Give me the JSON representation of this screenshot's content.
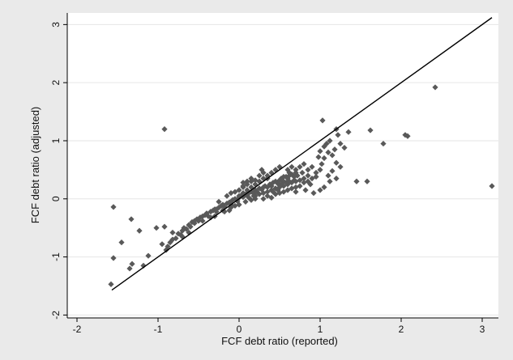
{
  "chart_data": {
    "type": "scatter",
    "title": "",
    "xlabel": "FCF debt ratio (reported)",
    "ylabel": "FCF debt ratio (adjusted)",
    "xlim": [
      -2.12,
      3.2
    ],
    "ylim": [
      -2.05,
      3.2
    ],
    "xticks": [
      -2,
      -1,
      0,
      1,
      2,
      3
    ],
    "yticks": [
      -2,
      -1,
      0,
      1,
      2,
      3
    ],
    "xtick_labels": [
      "-2",
      "-1",
      "0",
      "1",
      "2",
      "3"
    ],
    "ytick_labels": [
      "-2",
      "-1",
      "0",
      "1",
      "2",
      "3"
    ],
    "grid": "horizontal",
    "legend": "none",
    "colors": {
      "plot_background": "#ffffff",
      "outer_background": "#eaeaea",
      "points": "#595959",
      "line": "#000000",
      "grid": "#e6e6e6"
    },
    "reference_line": {
      "x": [
        -1.57,
        3.12
      ],
      "y": [
        -1.57,
        3.12
      ]
    },
    "points": [
      [
        -1.58,
        -1.47
      ],
      [
        -1.55,
        -1.02
      ],
      [
        -1.55,
        -0.14
      ],
      [
        -1.45,
        -0.75
      ],
      [
        -1.35,
        -1.2
      ],
      [
        -1.32,
        -1.12
      ],
      [
        -1.33,
        -0.35
      ],
      [
        -1.23,
        -0.55
      ],
      [
        -1.18,
        -1.15
      ],
      [
        -1.12,
        -0.98
      ],
      [
        -1.02,
        -0.5
      ],
      [
        -0.92,
        1.2
      ],
      [
        -0.95,
        -0.78
      ],
      [
        -0.92,
        -0.48
      ],
      [
        -0.88,
        -0.82
      ],
      [
        -0.85,
        -0.75
      ],
      [
        -0.82,
        -0.7
      ],
      [
        -0.78,
        -0.68
      ],
      [
        -0.75,
        -0.6
      ],
      [
        -0.72,
        -0.62
      ],
      [
        -0.7,
        -0.55
      ],
      [
        -0.68,
        -0.5
      ],
      [
        -0.65,
        -0.52
      ],
      [
        -0.62,
        -0.45
      ],
      [
        -0.6,
        -0.48
      ],
      [
        -0.58,
        -0.4
      ],
      [
        -0.55,
        -0.42
      ],
      [
        -0.52,
        -0.35
      ],
      [
        -0.5,
        -0.38
      ],
      [
        -0.48,
        -0.32
      ],
      [
        -0.45,
        -0.3
      ],
      [
        -0.42,
        -0.28
      ],
      [
        -0.4,
        -0.25
      ],
      [
        -0.38,
        -0.3
      ],
      [
        -0.35,
        -0.22
      ],
      [
        -0.32,
        -0.2
      ],
      [
        -0.3,
        -0.18
      ],
      [
        -0.28,
        -0.22
      ],
      [
        -0.25,
        -0.15
      ],
      [
        -0.22,
        -0.12
      ],
      [
        -0.2,
        -0.1
      ],
      [
        -0.18,
        -0.14
      ],
      [
        -0.15,
        -0.08
      ],
      [
        -0.12,
        -0.06
      ],
      [
        -0.1,
        -0.1
      ],
      [
        -0.08,
        -0.02
      ],
      [
        -0.05,
        0.0
      ],
      [
        -0.02,
        -0.04
      ],
      [
        0.0,
        0.02
      ],
      [
        0.02,
        0.05
      ],
      [
        0.05,
        0.03
      ],
      [
        0.08,
        0.08
      ],
      [
        0.1,
        0.06
      ],
      [
        0.12,
        0.1
      ],
      [
        0.15,
        0.12
      ],
      [
        0.18,
        0.1
      ],
      [
        0.2,
        0.15
      ],
      [
        0.22,
        0.12
      ],
      [
        0.25,
        0.18
      ],
      [
        0.28,
        0.16
      ],
      [
        0.3,
        0.2
      ],
      [
        0.32,
        0.22
      ],
      [
        0.35,
        0.2
      ],
      [
        0.38,
        0.25
      ],
      [
        0.4,
        0.22
      ],
      [
        0.42,
        0.28
      ],
      [
        0.45,
        0.3
      ],
      [
        0.48,
        0.26
      ],
      [
        0.5,
        0.32
      ],
      [
        0.52,
        0.35
      ],
      [
        0.55,
        0.3
      ],
      [
        0.58,
        0.38
      ],
      [
        0.6,
        0.35
      ],
      [
        0.62,
        0.4
      ],
      [
        0.65,
        0.42
      ],
      [
        0.68,
        0.38
      ],
      [
        0.7,
        0.45
      ],
      [
        -0.3,
        -0.3
      ],
      [
        -0.2,
        -0.2
      ],
      [
        -0.1,
        -0.05
      ],
      [
        0.0,
        0.05
      ],
      [
        0.05,
        0.1
      ],
      [
        0.1,
        0.15
      ],
      [
        0.15,
        0.2
      ],
      [
        0.2,
        0.25
      ],
      [
        0.25,
        0.3
      ],
      [
        0.3,
        0.35
      ],
      [
        0.35,
        0.4
      ],
      [
        0.4,
        0.45
      ],
      [
        0.45,
        0.5
      ],
      [
        0.5,
        0.55
      ],
      [
        0.2,
        0.05
      ],
      [
        0.25,
        0.08
      ],
      [
        0.3,
        0.1
      ],
      [
        0.35,
        0.12
      ],
      [
        0.4,
        0.15
      ],
      [
        0.45,
        0.18
      ],
      [
        0.5,
        0.2
      ],
      [
        0.55,
        0.22
      ],
      [
        0.6,
        0.25
      ],
      [
        0.65,
        0.28
      ],
      [
        0.7,
        0.3
      ],
      [
        0.75,
        0.32
      ],
      [
        0.8,
        0.35
      ],
      [
        0.85,
        0.4
      ],
      [
        0.3,
        0.0
      ],
      [
        0.35,
        0.05
      ],
      [
        0.4,
        0.02
      ],
      [
        0.45,
        0.08
      ],
      [
        0.5,
        0.1
      ],
      [
        0.55,
        0.12
      ],
      [
        0.6,
        0.15
      ],
      [
        0.65,
        0.18
      ],
      [
        0.7,
        0.2
      ],
      [
        0.75,
        0.22
      ],
      [
        0.8,
        0.28
      ],
      [
        0.85,
        0.3
      ],
      [
        0.9,
        0.35
      ],
      [
        0.95,
        0.38
      ],
      [
        -0.25,
        -0.05
      ],
      [
        -0.15,
        0.05
      ],
      [
        -0.1,
        0.1
      ],
      [
        -0.05,
        0.12
      ],
      [
        0.0,
        0.15
      ],
      [
        0.05,
        0.2
      ],
      [
        0.1,
        0.25
      ],
      [
        0.15,
        0.3
      ],
      [
        0.2,
        0.32
      ],
      [
        0.25,
        0.4
      ],
      [
        0.3,
        0.45
      ],
      [
        0.1,
        0.3
      ],
      [
        0.05,
        0.28
      ],
      [
        0.2,
        0.0
      ],
      [
        0.0,
        -0.1
      ],
      [
        -0.1,
        -0.15
      ],
      [
        -0.05,
        -0.12
      ],
      [
        0.08,
        -0.05
      ],
      [
        0.15,
        -0.02
      ],
      [
        0.12,
        0.02
      ],
      [
        0.18,
        0.05
      ],
      [
        0.6,
        0.5
      ],
      [
        0.65,
        0.55
      ],
      [
        0.7,
        0.5
      ],
      [
        0.75,
        0.55
      ],
      [
        0.8,
        0.6
      ],
      [
        0.85,
        0.5
      ],
      [
        0.9,
        0.55
      ],
      [
        0.78,
        0.45
      ],
      [
        0.72,
        0.4
      ],
      [
        0.68,
        0.32
      ],
      [
        0.62,
        0.3
      ],
      [
        0.58,
        0.28
      ],
      [
        0.52,
        0.25
      ],
      [
        0.48,
        0.15
      ],
      [
        0.95,
        0.45
      ],
      [
        1.0,
        0.5
      ],
      [
        1.02,
        0.6
      ],
      [
        1.05,
        0.7
      ],
      [
        1.0,
        0.82
      ],
      [
        1.05,
        0.9
      ],
      [
        1.08,
        0.95
      ],
      [
        1.1,
        0.8
      ],
      [
        1.12,
        1.0
      ],
      [
        1.15,
        0.75
      ],
      [
        1.18,
        0.85
      ],
      [
        1.2,
        1.2
      ],
      [
        1.22,
        1.1
      ],
      [
        1.25,
        0.95
      ],
      [
        1.03,
        1.35
      ],
      [
        1.2,
        0.62
      ],
      [
        1.25,
        0.55
      ],
      [
        1.15,
        0.48
      ],
      [
        1.1,
        0.4
      ],
      [
        1.05,
        0.2
      ],
      [
        1.0,
        0.15
      ],
      [
        1.35,
        1.15
      ],
      [
        1.3,
        0.88
      ],
      [
        0.98,
        0.72
      ],
      [
        1.2,
        0.35
      ],
      [
        1.12,
        0.3
      ],
      [
        1.45,
        0.3
      ],
      [
        1.58,
        0.3
      ],
      [
        1.62,
        1.18
      ],
      [
        1.78,
        0.95
      ],
      [
        2.05,
        1.1
      ],
      [
        2.08,
        1.08
      ],
      [
        2.42,
        1.92
      ],
      [
        3.12,
        0.22
      ],
      [
        -0.9,
        -0.88
      ],
      [
        -0.82,
        -0.58
      ],
      [
        -0.7,
        -0.65
      ],
      [
        -0.62,
        -0.58
      ],
      [
        -0.55,
        -0.38
      ],
      [
        -0.45,
        -0.38
      ],
      [
        -0.35,
        -0.32
      ],
      [
        -0.28,
        -0.18
      ],
      [
        -0.18,
        -0.22
      ],
      [
        -0.12,
        -0.2
      ],
      [
        0.05,
        0.22
      ],
      [
        0.15,
        0.35
      ],
      [
        0.28,
        0.5
      ],
      [
        0.35,
        0.35
      ],
      [
        0.42,
        0.12
      ],
      [
        0.55,
        0.38
      ],
      [
        0.62,
        0.45
      ],
      [
        0.7,
        0.12
      ],
      [
        0.82,
        0.15
      ],
      [
        0.88,
        0.25
      ],
      [
        0.92,
        0.1
      ]
    ]
  }
}
